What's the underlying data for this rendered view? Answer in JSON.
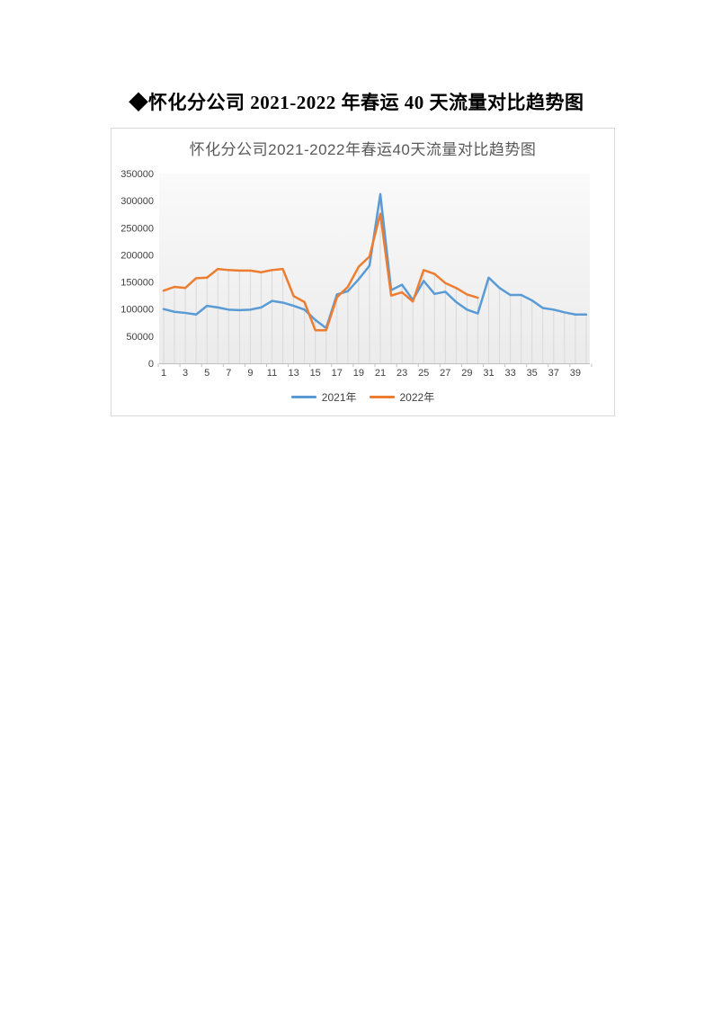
{
  "document": {
    "title": "◆怀化分公司 2021-2022 年春运 40 天流量对比趋势图"
  },
  "chart_data": {
    "type": "line",
    "title": "怀化分公司2021-2022年春运40天流量对比趋势图",
    "xlabel": "",
    "ylabel": "",
    "x": [
      1,
      2,
      3,
      4,
      5,
      6,
      7,
      8,
      9,
      10,
      11,
      12,
      13,
      14,
      15,
      16,
      17,
      18,
      19,
      20,
      21,
      22,
      23,
      24,
      25,
      26,
      27,
      28,
      29,
      30,
      31,
      32,
      33,
      34,
      35,
      36,
      37,
      38,
      39,
      40
    ],
    "x_tick_labels": [
      "1",
      "3",
      "5",
      "7",
      "9",
      "11",
      "13",
      "15",
      "17",
      "19",
      "21",
      "23",
      "25",
      "27",
      "29",
      "31",
      "33",
      "35",
      "37",
      "39"
    ],
    "y_ticks": [
      0,
      50000,
      100000,
      150000,
      200000,
      250000,
      300000,
      350000
    ],
    "y_tick_labels": [
      "0",
      "50000",
      "100000",
      "150000",
      "200000",
      "250000",
      "300000",
      "350000"
    ],
    "ylim": [
      0,
      350000
    ],
    "grid": "vertical drop lines from each point to category axis, no horizontal gridlines",
    "legend_position": "bottom",
    "series": [
      {
        "name": "2021年",
        "color": "#5b9bd5",
        "values": [
          100000,
          95000,
          93000,
          90000,
          106000,
          103000,
          99000,
          98000,
          99000,
          103000,
          115000,
          112000,
          106000,
          99000,
          80000,
          65000,
          127000,
          133000,
          155000,
          180000,
          312000,
          135000,
          145000,
          117000,
          152000,
          128000,
          132000,
          113000,
          99000,
          92000,
          158000,
          139000,
          126000,
          126000,
          116000,
          102000,
          99000,
          94000,
          90000,
          90000
        ]
      },
      {
        "name": "2022年",
        "color": "#ed7d31",
        "values": [
          134000,
          141000,
          139000,
          157000,
          158000,
          174000,
          172000,
          171000,
          171000,
          168000,
          172000,
          174000,
          124000,
          113000,
          61000,
          61000,
          122000,
          141000,
          178000,
          197000,
          276000,
          125000,
          131000,
          114000,
          172000,
          165000,
          148000,
          139000,
          127000,
          121000
        ]
      }
    ],
    "colors": {
      "dropline": "#d9d9d9",
      "axis_line": "#bfbfbf",
      "axis_text": "#404040",
      "title_text": "#595959",
      "plot_fill_top": "#fafafa",
      "plot_fill_bottom": "#ebebeb"
    }
  }
}
